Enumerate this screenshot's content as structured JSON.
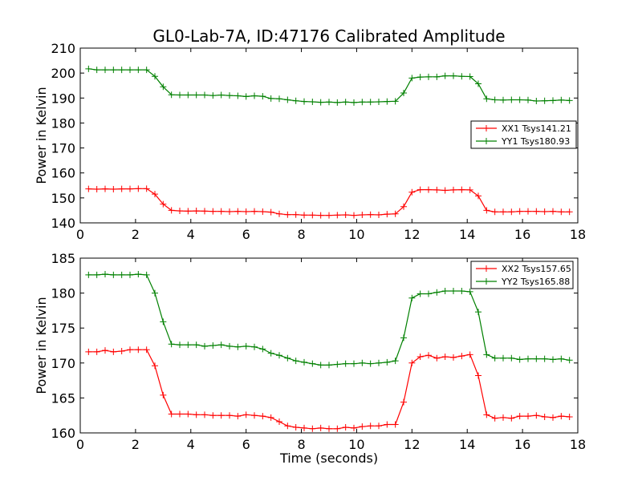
{
  "title": "GL0-Lab-7A, ID:47176 Calibrated Amplitude",
  "colors": {
    "red": "#ff0000",
    "green": "#008000"
  },
  "chart_data": [
    {
      "type": "line",
      "title": "GL0-Lab-7A, ID:47176 Calibrated Amplitude",
      "xlabel": "",
      "ylabel": "Power in Kelvin",
      "xlim": [
        0,
        18
      ],
      "ylim": [
        140,
        210
      ],
      "xticks": [
        0,
        2,
        4,
        6,
        8,
        10,
        12,
        14,
        16,
        18
      ],
      "yticks": [
        140,
        150,
        160,
        170,
        180,
        190,
        200,
        210
      ],
      "grid": false,
      "legend": "right",
      "x": [
        0.3,
        0.6,
        0.9,
        1.2,
        1.5,
        1.8,
        2.1,
        2.4,
        2.7,
        3.0,
        3.3,
        3.6,
        3.9,
        4.2,
        4.5,
        4.8,
        5.1,
        5.4,
        5.7,
        6.0,
        6.3,
        6.6,
        6.9,
        7.2,
        7.5,
        7.8,
        8.1,
        8.4,
        8.7,
        9.0,
        9.3,
        9.6,
        9.9,
        10.2,
        10.5,
        10.8,
        11.1,
        11.4,
        11.7,
        12.0,
        12.3,
        12.6,
        12.9,
        13.2,
        13.5,
        13.8,
        14.1,
        14.4,
        14.7,
        15.0,
        15.3,
        15.6,
        15.9,
        16.2,
        16.5,
        16.8,
        17.1,
        17.4,
        17.7
      ],
      "series": [
        {
          "name": "XX1 Tsys141.21",
          "color": "#ff0000",
          "values": [
            153.6,
            153.5,
            153.6,
            153.5,
            153.6,
            153.6,
            153.7,
            153.7,
            151.5,
            147.5,
            145.0,
            144.8,
            144.7,
            144.8,
            144.7,
            144.6,
            144.6,
            144.5,
            144.6,
            144.5,
            144.6,
            144.5,
            144.3,
            143.6,
            143.3,
            143.3,
            143.1,
            143.1,
            143.0,
            143.0,
            143.1,
            143.2,
            143.0,
            143.2,
            143.3,
            143.2,
            143.5,
            143.6,
            146.5,
            152.3,
            153.3,
            153.3,
            153.2,
            153.0,
            153.2,
            153.3,
            153.2,
            150.8,
            145.0,
            144.4,
            144.4,
            144.4,
            144.6,
            144.6,
            144.6,
            144.5,
            144.6,
            144.4,
            144.4
          ]
        },
        {
          "name": "YY1 Tsys180.93",
          "color": "#008000",
          "values": [
            201.7,
            201.3,
            201.3,
            201.3,
            201.3,
            201.3,
            201.3,
            201.3,
            198.7,
            194.5,
            191.3,
            191.2,
            191.2,
            191.2,
            191.2,
            191.0,
            191.2,
            191.0,
            190.9,
            190.6,
            190.9,
            190.7,
            189.8,
            189.7,
            189.3,
            188.9,
            188.6,
            188.5,
            188.3,
            188.4,
            188.2,
            188.4,
            188.2,
            188.4,
            188.4,
            188.5,
            188.6,
            188.7,
            192.0,
            198.0,
            198.4,
            198.5,
            198.5,
            198.9,
            198.9,
            198.7,
            198.6,
            195.7,
            189.7,
            189.3,
            189.2,
            189.3,
            189.3,
            189.2,
            188.8,
            188.9,
            189.0,
            189.2,
            189.0
          ]
        }
      ]
    },
    {
      "type": "line",
      "title": "",
      "xlabel": "Time (seconds)",
      "ylabel": "Power in Kelvin",
      "xlim": [
        0,
        18
      ],
      "ylim": [
        160,
        185
      ],
      "xticks": [
        0,
        2,
        4,
        6,
        8,
        10,
        12,
        14,
        16,
        18
      ],
      "yticks": [
        160,
        165,
        170,
        175,
        180,
        185
      ],
      "grid": false,
      "legend": "top-right",
      "x": [
        0.3,
        0.6,
        0.9,
        1.2,
        1.5,
        1.8,
        2.1,
        2.4,
        2.7,
        3.0,
        3.3,
        3.6,
        3.9,
        4.2,
        4.5,
        4.8,
        5.1,
        5.4,
        5.7,
        6.0,
        6.3,
        6.6,
        6.9,
        7.2,
        7.5,
        7.8,
        8.1,
        8.4,
        8.7,
        9.0,
        9.3,
        9.6,
        9.9,
        10.2,
        10.5,
        10.8,
        11.1,
        11.4,
        11.7,
        12.0,
        12.3,
        12.6,
        12.9,
        13.2,
        13.5,
        13.8,
        14.1,
        14.4,
        14.7,
        15.0,
        15.3,
        15.6,
        15.9,
        16.2,
        16.5,
        16.8,
        17.1,
        17.4,
        17.7
      ],
      "series": [
        {
          "name": "XX2 Tsys157.65",
          "color": "#ff0000",
          "values": [
            171.6,
            171.6,
            171.8,
            171.6,
            171.7,
            171.9,
            171.9,
            171.9,
            169.6,
            165.4,
            162.7,
            162.7,
            162.7,
            162.6,
            162.6,
            162.5,
            162.5,
            162.5,
            162.4,
            162.6,
            162.5,
            162.4,
            162.2,
            161.6,
            161.0,
            160.8,
            160.7,
            160.6,
            160.7,
            160.6,
            160.6,
            160.8,
            160.7,
            160.9,
            161.0,
            161.0,
            161.2,
            161.2,
            164.4,
            170.0,
            170.9,
            171.1,
            170.7,
            170.9,
            170.8,
            171.0,
            171.2,
            168.2,
            162.6,
            162.1,
            162.2,
            162.1,
            162.4,
            162.4,
            162.5,
            162.3,
            162.2,
            162.4,
            162.3
          ]
        },
        {
          "name": "YY2 Tsys165.88",
          "color": "#008000",
          "values": [
            182.6,
            182.6,
            182.7,
            182.6,
            182.6,
            182.6,
            182.7,
            182.6,
            180.0,
            175.9,
            172.7,
            172.6,
            172.6,
            172.6,
            172.4,
            172.5,
            172.6,
            172.4,
            172.3,
            172.4,
            172.3,
            172.0,
            171.4,
            171.1,
            170.7,
            170.3,
            170.1,
            169.9,
            169.7,
            169.7,
            169.8,
            169.9,
            169.9,
            170.0,
            169.9,
            170.0,
            170.1,
            170.3,
            173.6,
            179.3,
            179.9,
            179.9,
            180.1,
            180.3,
            180.3,
            180.3,
            180.2,
            177.3,
            171.2,
            170.7,
            170.7,
            170.7,
            170.5,
            170.6,
            170.6,
            170.6,
            170.5,
            170.6,
            170.4
          ]
        }
      ]
    }
  ]
}
